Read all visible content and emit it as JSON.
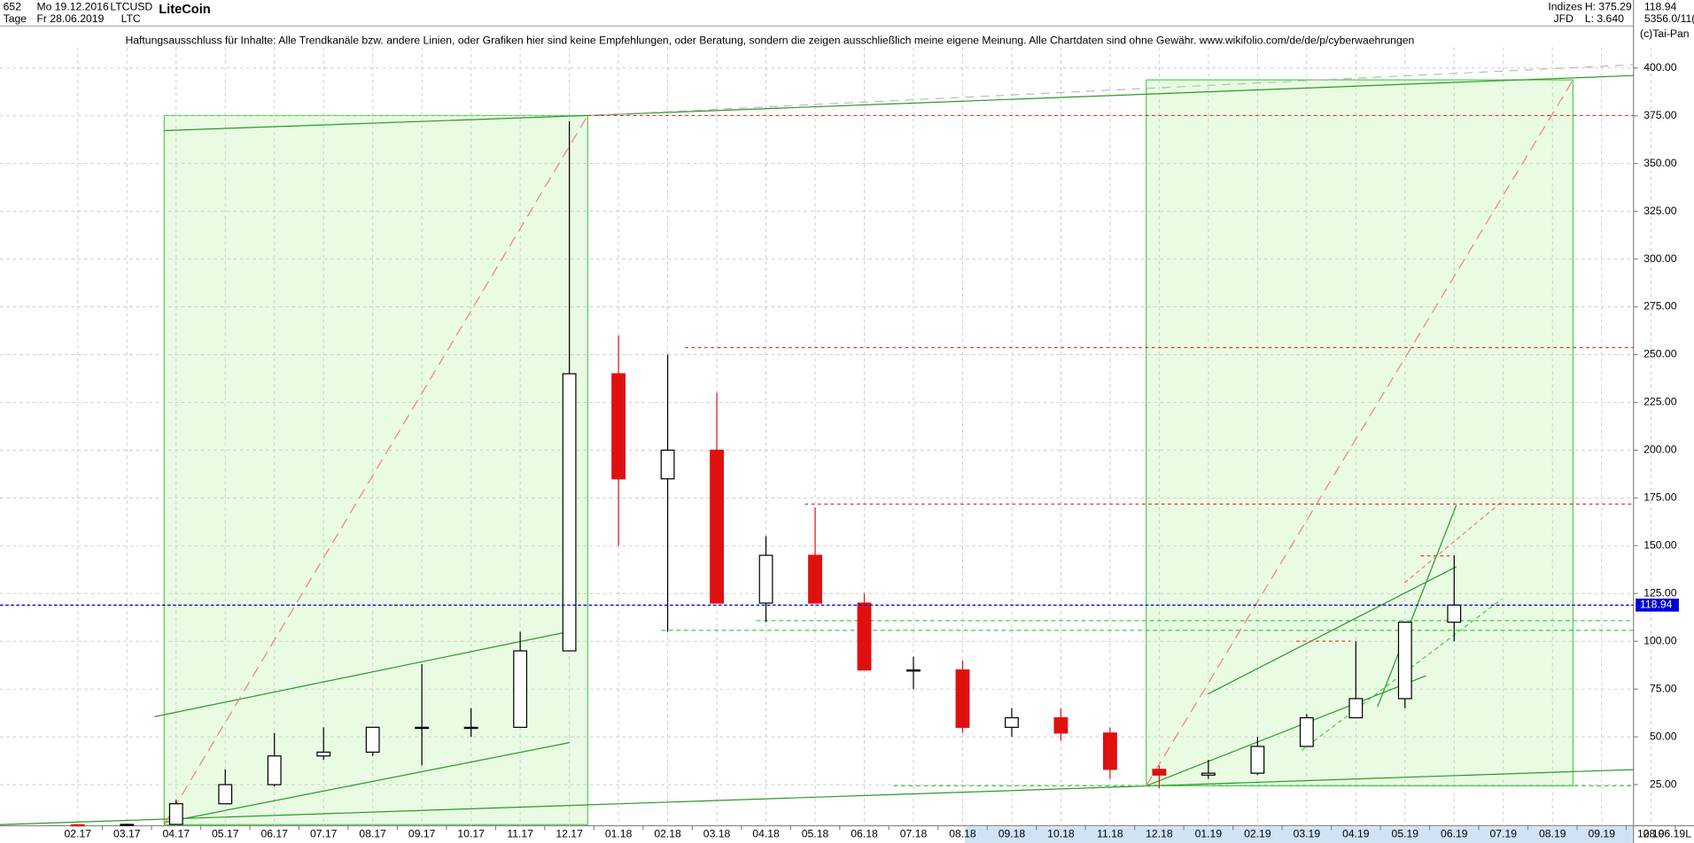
{
  "chart_data": {
    "type": "candlestick",
    "title": "LiteCoin",
    "header": {
      "count": "652",
      "start_date": "Mo 19.12.2016",
      "end_date": "Fr 28.06.2019",
      "symbol": "LTCUSD",
      "symbol_short": "LTC",
      "period": "Tage",
      "group": "Indizes",
      "broker": "JFD",
      "high": "H: 375.29",
      "low": "L: 3.640",
      "last": "118.94",
      "volume": "5356.0/11(",
      "copyright": "(c)Tai-Pan"
    },
    "disclaimer": "Haftungsausschluss für Inhalte: Alle Trendkanäle bzw. andere Linien, oder Grafiken hier sind keine Empfehlungen, oder Beratung, sondern die zeigen ausschließlich meine eigene Meinung. Alle Chartdaten sind ohne Gewähr.  www.wikifolio.com/de/de/p/cyberwaehrungen",
    "end_label": "28.06.19",
    "corner_label": "L",
    "last_price": 118.94,
    "categories": [
      "02.17",
      "03.17",
      "04.17",
      "05.17",
      "06.17",
      "07.17",
      "08.17",
      "09.17",
      "10.17",
      "11.17",
      "12.17",
      "01.18",
      "02.18",
      "03.18",
      "04.18",
      "05.18",
      "06.18",
      "07.18",
      "08.18",
      "09.18",
      "10.18",
      "11.18",
      "12.18",
      "01.19",
      "02.19",
      "03.19",
      "04.19",
      "05.19",
      "06.19",
      "07.19",
      "08.19",
      "09.19",
      "10.19"
    ],
    "open": [
      4,
      3.9,
      4.2,
      15,
      25,
      40,
      42,
      55,
      55,
      55,
      95,
      240,
      185,
      200,
      120,
      145,
      120,
      85,
      85,
      55,
      60,
      52,
      33,
      30,
      31,
      45,
      60,
      70,
      110,
      null,
      null,
      null,
      null
    ],
    "high": [
      4.3,
      4.5,
      17,
      33,
      52,
      55,
      55,
      88,
      65,
      105,
      372,
      260,
      250,
      230,
      155,
      170,
      125,
      92,
      90,
      65,
      65,
      55,
      35,
      38,
      50,
      62,
      100,
      110,
      145,
      null,
      null,
      null,
      null
    ],
    "low": [
      3.7,
      3.6,
      4.1,
      15,
      24,
      38,
      40,
      35,
      50,
      55,
      95,
      150,
      105,
      120,
      110,
      120,
      85,
      75,
      52,
      50,
      48,
      28,
      23,
      28,
      30,
      45,
      60,
      65,
      100,
      null,
      null,
      null,
      null
    ],
    "close": [
      3.9,
      4.2,
      15,
      25,
      40,
      42,
      55,
      55,
      55,
      95,
      240,
      185,
      200,
      120,
      145,
      120,
      85,
      85,
      55,
      60,
      52,
      33,
      30,
      31,
      45,
      60,
      70,
      110,
      118.94,
      null,
      null,
      null,
      null
    ],
    "up_color": "#000000",
    "down_color": "#e01010",
    "last_color": "#0000dd",
    "ylim": [
      3.5,
      410.7
    ],
    "yticks": [
      {
        "value": 25,
        "label": "25.00"
      },
      {
        "value": 50,
        "label": "50.00"
      },
      {
        "value": 75,
        "label": "75.00"
      },
      {
        "value": 100,
        "label": "100.00"
      },
      {
        "value": 125,
        "label": "125.00"
      },
      {
        "value": 150,
        "label": "150.00"
      },
      {
        "value": 175,
        "label": "175.00"
      },
      {
        "value": 200,
        "label": "200.00"
      },
      {
        "value": 225,
        "label": "225.00"
      },
      {
        "value": 250,
        "label": "250.00"
      },
      {
        "value": 275,
        "label": "275.00"
      },
      {
        "value": 300,
        "label": "300.00"
      },
      {
        "value": 325,
        "label": "325.00"
      },
      {
        "value": 350,
        "label": "350.00"
      },
      {
        "value": 375,
        "label": "375.00"
      },
      {
        "value": 400,
        "label": "400.00"
      }
    ],
    "grid": true
  }
}
